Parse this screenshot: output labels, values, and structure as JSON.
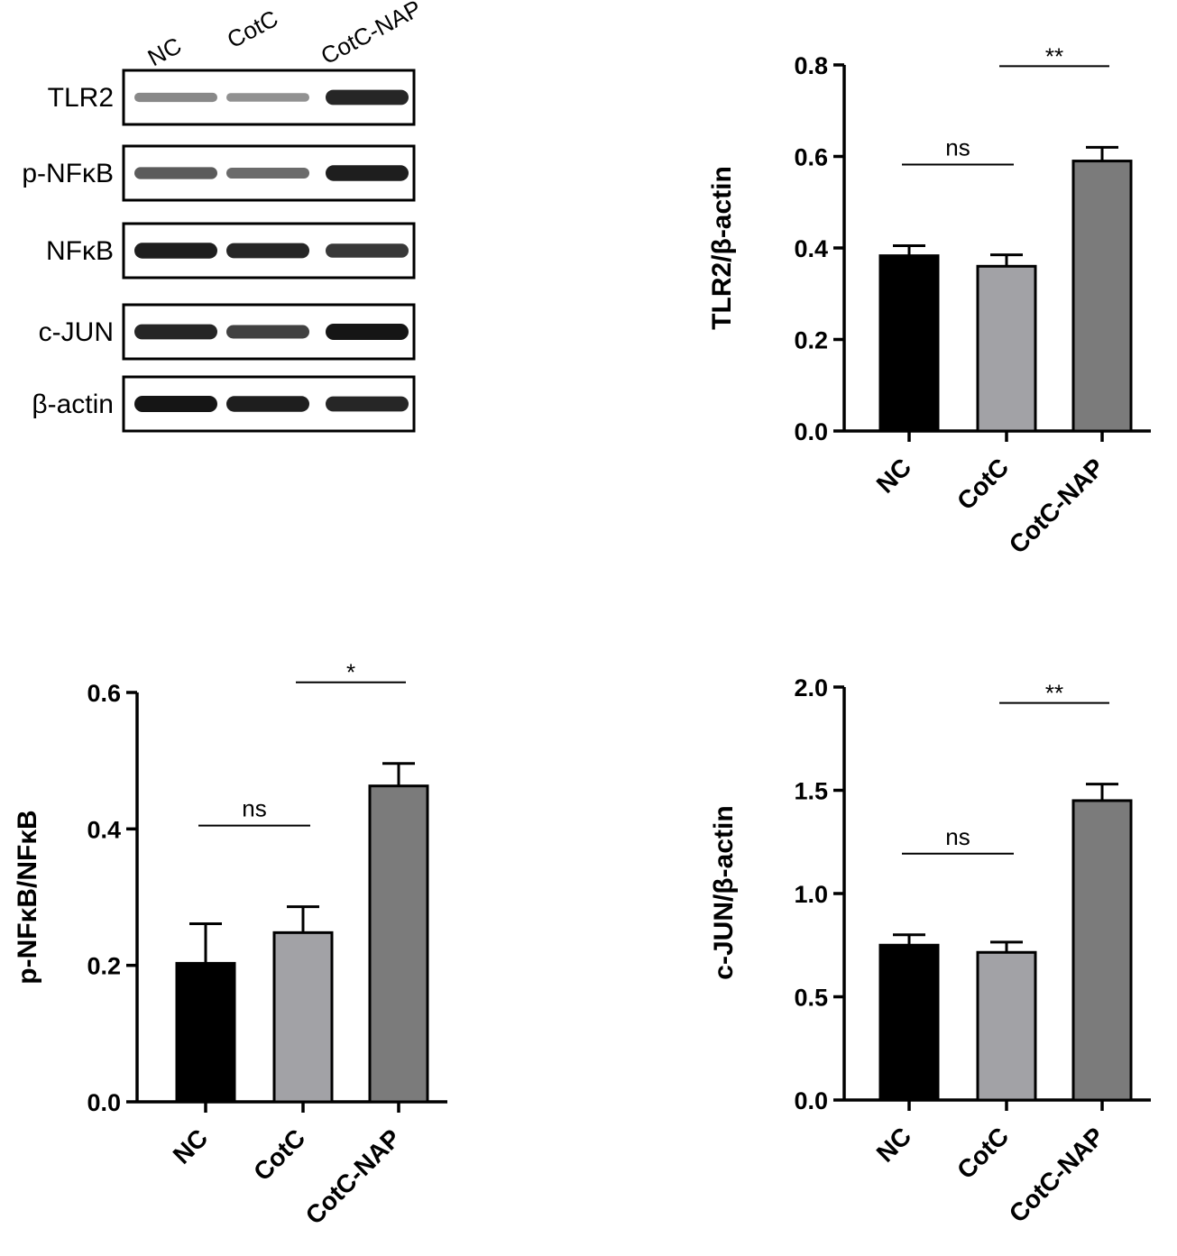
{
  "western_blot": {
    "lanes": [
      "NC",
      "CotC",
      "CotC-NAP"
    ],
    "rows": [
      {
        "label": "TLR2",
        "intensities": [
          0.35,
          0.3,
          0.9
        ]
      },
      {
        "label": "p-NFκB",
        "intensities": [
          0.6,
          0.5,
          0.95
        ]
      },
      {
        "label": "NFκB",
        "intensities": [
          0.95,
          0.9,
          0.8
        ]
      },
      {
        "label": "c-JUN",
        "intensities": [
          0.9,
          0.75,
          1.0
        ]
      },
      {
        "label": "β-actin",
        "intensities": [
          1.0,
          0.95,
          0.9
        ]
      }
    ]
  },
  "colors": {
    "NC": "#000000",
    "CotC": "#a2a2a6",
    "CotC-NAP": "#7b7b7b"
  },
  "chart_data": [
    {
      "type": "bar",
      "categories": [
        "NC",
        "CotC",
        "CotC-NAP"
      ],
      "values": [
        0.383,
        0.36,
        0.59
      ],
      "errors": [
        0.022,
        0.025,
        0.03
      ],
      "ylabel": "TLR2/β-actin",
      "ylim": [
        0,
        0.8
      ],
      "yticks": [
        "0.0",
        "0.2",
        "0.4",
        "0.6",
        "0.8"
      ],
      "comparisons": [
        {
          "from": 0,
          "to": 1,
          "label": "ns"
        },
        {
          "from": 1,
          "to": 2,
          "label": "**"
        }
      ]
    },
    {
      "type": "bar",
      "categories": [
        "NC",
        "CotC",
        "CotC-NAP"
      ],
      "values": [
        0.203,
        0.248,
        0.463
      ],
      "errors": [
        0.058,
        0.038,
        0.033
      ],
      "ylabel": "p-NFκB/NFκB",
      "ylim": [
        0,
        0.6
      ],
      "yticks": [
        "0.0",
        "0.2",
        "0.4",
        "0.6"
      ],
      "comparisons": [
        {
          "from": 0,
          "to": 1,
          "label": "ns"
        },
        {
          "from": 1,
          "to": 2,
          "label": "*"
        }
      ]
    },
    {
      "type": "bar",
      "categories": [
        "NC",
        "CotC",
        "CotC-NAP"
      ],
      "values": [
        0.75,
        0.715,
        1.45
      ],
      "errors": [
        0.05,
        0.05,
        0.08
      ],
      "ylabel": "c-JUN/β-actin",
      "ylim": [
        0,
        2.0
      ],
      "yticks": [
        "0.0",
        "0.5",
        "1.0",
        "1.5",
        "2.0"
      ],
      "comparisons": [
        {
          "from": 0,
          "to": 1,
          "label": "ns"
        },
        {
          "from": 1,
          "to": 2,
          "label": "**"
        }
      ]
    }
  ]
}
